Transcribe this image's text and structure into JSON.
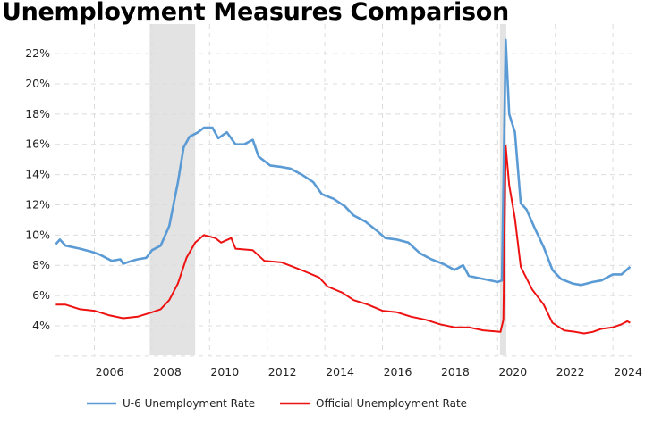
{
  "chart_data": {
    "type": "line",
    "title": "Unemployment Measures Comparison",
    "xlabel": "",
    "ylabel": "",
    "xlim": [
      2004.66,
      2024.9
    ],
    "ylim": [
      2,
      23
    ],
    "grid": true,
    "legend_position": "bottom",
    "x_ticks": [
      "2006",
      "2008",
      "2010",
      "2012",
      "2014",
      "2016",
      "2018",
      "2020",
      "2022",
      "2024"
    ],
    "y_ticks": [
      "4%",
      "6%",
      "8%",
      "10%",
      "12%",
      "14%",
      "16%",
      "18%",
      "20%",
      "22%"
    ],
    "recessions": [
      [
        2007.92,
        2009.5
      ],
      [
        2020.08,
        2020.3
      ]
    ],
    "series": [
      {
        "name": "U-6 Unemployment Rate",
        "color": "#5b9bd5",
        "x": [
          2004.66,
          2004.8,
          2005.0,
          2005.5,
          2005.9,
          2006.2,
          2006.6,
          2006.9,
          2007.0,
          2007.3,
          2007.5,
          2007.8,
          2008.0,
          2008.3,
          2008.6,
          2008.9,
          2009.1,
          2009.3,
          2009.6,
          2009.8,
          2010.1,
          2010.3,
          2010.6,
          2010.9,
          2011.2,
          2011.5,
          2011.7,
          2012.1,
          2012.5,
          2012.8,
          2013.2,
          2013.6,
          2013.9,
          2014.3,
          2014.7,
          2015.0,
          2015.4,
          2015.8,
          2016.1,
          2016.5,
          2016.9,
          2017.3,
          2017.7,
          2018.1,
          2018.5,
          2018.8,
          2019.0,
          2019.5,
          2020.0,
          2020.15,
          2020.28,
          2020.4,
          2020.6,
          2020.8,
          2021.0,
          2021.3,
          2021.6,
          2021.9,
          2022.2,
          2022.6,
          2022.9,
          2023.3,
          2023.6,
          2024.0,
          2024.3,
          2024.6
        ],
        "values": [
          9.4,
          9.7,
          9.3,
          9.1,
          8.9,
          8.7,
          8.3,
          8.4,
          8.1,
          8.3,
          8.4,
          8.5,
          9.0,
          9.3,
          10.6,
          13.5,
          15.8,
          16.5,
          16.8,
          17.1,
          17.1,
          16.4,
          16.8,
          16.0,
          16.0,
          16.3,
          15.2,
          14.6,
          14.5,
          14.4,
          14.0,
          13.5,
          12.7,
          12.4,
          11.9,
          11.3,
          10.9,
          10.3,
          9.8,
          9.7,
          9.5,
          8.8,
          8.4,
          8.1,
          7.7,
          8.0,
          7.3,
          7.1,
          6.9,
          7.0,
          22.9,
          18.0,
          16.8,
          12.1,
          11.7,
          10.4,
          9.2,
          7.7,
          7.1,
          6.8,
          6.7,
          6.9,
          7.0,
          7.4,
          7.4,
          7.9
        ]
      },
      {
        "name": "Official Unemployment Rate",
        "color": "#ee1111",
        "x": [
          2004.66,
          2005.0,
          2005.5,
          2006.0,
          2006.5,
          2007.0,
          2007.5,
          2008.0,
          2008.3,
          2008.6,
          2008.9,
          2009.2,
          2009.5,
          2009.8,
          2010.2,
          2010.4,
          2010.75,
          2010.9,
          2011.5,
          2011.9,
          2012.5,
          2012.9,
          2013.3,
          2013.8,
          2014.1,
          2014.6,
          2015.0,
          2015.5,
          2016.0,
          2016.5,
          2017.0,
          2017.5,
          2018.0,
          2018.5,
          2019.0,
          2019.5,
          2020.1,
          2020.2,
          2020.28,
          2020.4,
          2020.6,
          2020.8,
          2021.2,
          2021.6,
          2021.9,
          2022.3,
          2022.7,
          2023.0,
          2023.3,
          2023.6,
          2024.0,
          2024.3,
          2024.5,
          2024.6
        ],
        "values": [
          5.4,
          5.4,
          5.1,
          5.0,
          4.7,
          4.5,
          4.6,
          4.9,
          5.1,
          5.7,
          6.8,
          8.5,
          9.5,
          10.0,
          9.8,
          9.5,
          9.8,
          9.1,
          9.0,
          8.3,
          8.2,
          7.9,
          7.6,
          7.2,
          6.6,
          6.2,
          5.7,
          5.4,
          5.0,
          4.9,
          4.6,
          4.4,
          4.1,
          3.9,
          3.9,
          3.7,
          3.6,
          4.4,
          15.9,
          13.3,
          11.1,
          7.9,
          6.4,
          5.4,
          4.2,
          3.7,
          3.6,
          3.5,
          3.6,
          3.8,
          3.9,
          4.1,
          4.3,
          4.2
        ]
      }
    ]
  }
}
